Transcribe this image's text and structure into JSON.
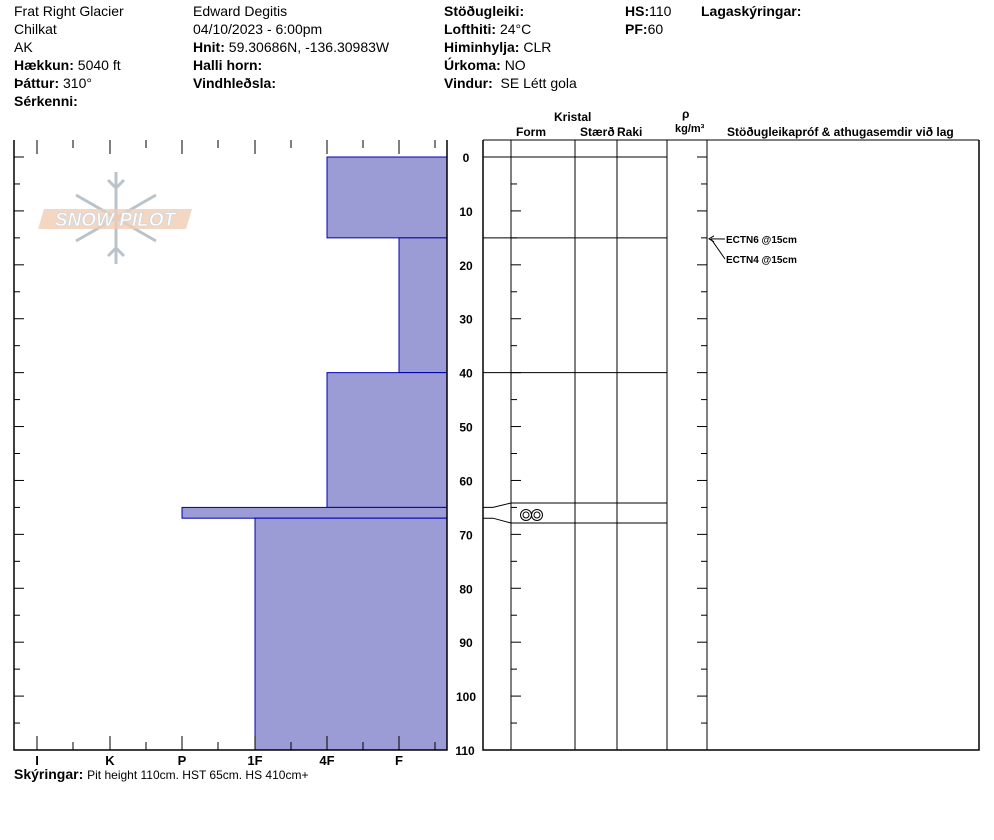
{
  "header": {
    "location": "Frat Right Glacier",
    "range": "Chilkat",
    "state": "AK",
    "elevation_label": "Hækkun:",
    "elevation": "5040 ft",
    "aspect_label": "Þáttur:",
    "aspect": "310°",
    "features_label": "Sérkenni:",
    "observer": "Edward Degitis",
    "datetime": "04/10/2023 - 6:00pm",
    "coords_label": "Hnit:",
    "coords": "59.30686N, -136.30983W",
    "slope_label": "Halli horn:",
    "wind_loading_label": "Vindhleðsla:",
    "stability_label": "Stöðugleiki:",
    "air_temp_label": "Lofthiti:",
    "air_temp": "24°C",
    "sky_label": "Himinhylja:",
    "sky": "CLR",
    "precip_label": "Úrkoma:",
    "precip": "NO",
    "wind_label": "Vindur:",
    "wind": "SE Létt gola",
    "hs_label": "HS:",
    "hs": "110",
    "pf_label": "PF:",
    "pf": "60",
    "layer_notes_label": "Lagaskýringar:"
  },
  "logo": {
    "text": "SNOW PILOT"
  },
  "table_header": {
    "crystal": "Kristal",
    "form": "Form",
    "size": "Stærð",
    "moisture": "Raki",
    "density_symbol": "ρ",
    "density_unit": "kg/m³",
    "comments": "Stöðugleikapróf & athugasemdir við lag"
  },
  "hardness_axis": [
    "I",
    "K",
    "P",
    "1F",
    "4F",
    "F"
  ],
  "depth_axis": [
    0,
    10,
    20,
    30,
    40,
    50,
    60,
    70,
    80,
    90,
    100,
    110
  ],
  "layers": [
    {
      "top": 0,
      "bottom": 15,
      "hardness": "4F",
      "form": ""
    },
    {
      "top": 15,
      "bottom": 40,
      "hardness": "F",
      "form": ""
    },
    {
      "top": 40,
      "bottom": 65,
      "hardness": "4F",
      "form": ""
    },
    {
      "top": 65,
      "bottom": 67,
      "hardness": "P",
      "form": "melt-forms-clustered"
    },
    {
      "top": 67,
      "bottom": 110,
      "hardness": "1F",
      "form": ""
    }
  ],
  "tests": [
    "ECTN6 @15cm",
    "ECTN4 @15cm"
  ],
  "footer": {
    "label": "Skýringar:",
    "text": "Pit height 110cm. HST 65cm. HS 410cm+"
  },
  "colors": {
    "bar_fill": "#9b9bd6",
    "bar_stroke": "#0000aa"
  }
}
